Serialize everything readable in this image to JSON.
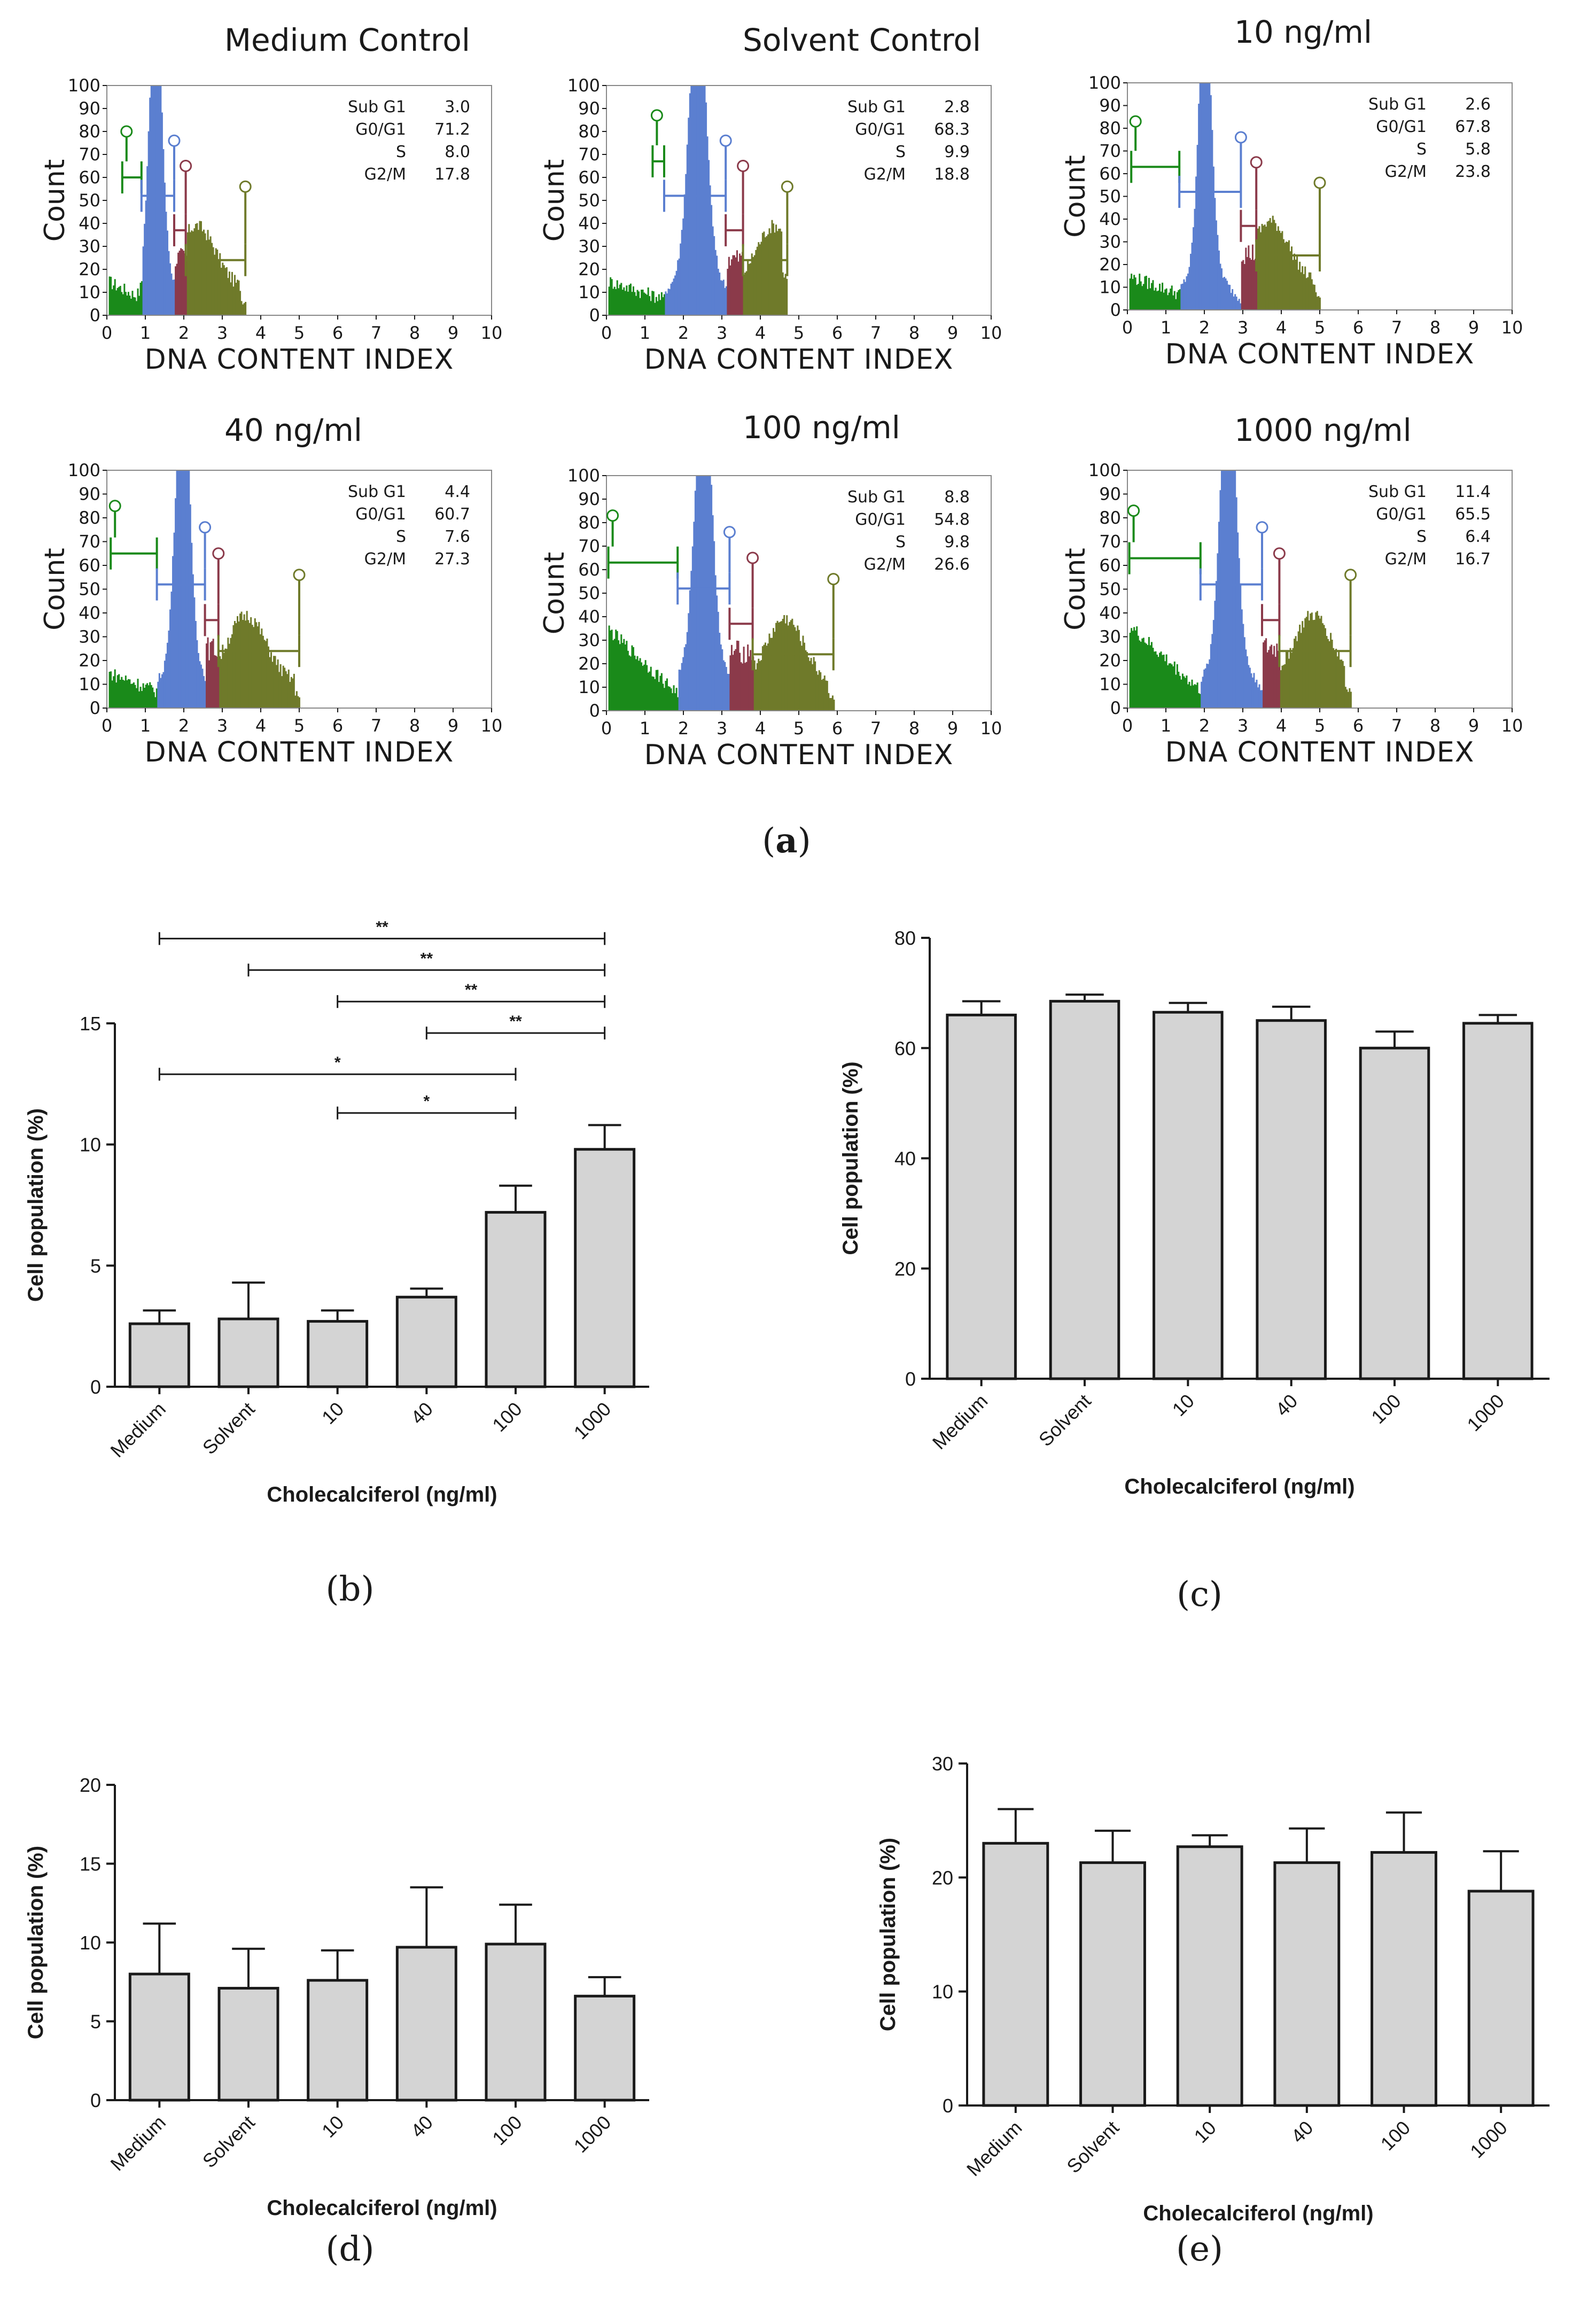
{
  "figure": {
    "captions": {
      "a": "a",
      "b": "b",
      "c": "c",
      "d": "d",
      "e": "e"
    }
  },
  "colors": {
    "sub_g1": "#1a8a1a",
    "g0_g1": "#5b7fd0",
    "s": "#8b3a4a",
    "g2_m": "#6f7a2a",
    "bar_fill": "#d4d4d4",
    "axis": "#1a1a1a"
  },
  "chart_data": [
    {
      "id": "a1",
      "type": "area",
      "title": "Medium Control",
      "xlabel": "DNA CONTENT INDEX",
      "ylabel": "Count",
      "xlim": [
        0,
        10
      ],
      "ylim": [
        0,
        100
      ],
      "xticks": [
        "0",
        "1",
        "2",
        "3",
        "4",
        "5",
        "6",
        "7",
        "8",
        "9",
        "10"
      ],
      "yticks": [
        "0",
        "10",
        "20",
        "30",
        "40",
        "50",
        "60",
        "70",
        "80",
        "90",
        "100"
      ],
      "stats": [
        {
          "label": "Sub G1",
          "value": "3.0"
        },
        {
          "label": "G0/G1",
          "value": "71.2"
        },
        {
          "label": "S",
          "value": "8.0"
        },
        {
          "label": "G2/M",
          "value": "17.8"
        }
      ],
      "peak": 1.25,
      "peak_width": 0.22,
      "gates": [
        [
          0.4,
          0.9
        ],
        [
          0.9,
          1.75
        ],
        [
          1.75,
          2.05
        ],
        [
          2.05,
          3.6
        ]
      ],
      "gate_y": [
        80,
        76,
        65,
        56
      ]
    },
    {
      "id": "a2",
      "type": "area",
      "title": "Solvent Control",
      "xlabel": "DNA CONTENT INDEX",
      "ylabel": "Count",
      "xlim": [
        0,
        10
      ],
      "ylim": [
        0,
        100
      ],
      "xticks": [
        "0",
        "1",
        "2",
        "3",
        "4",
        "5",
        "6",
        "7",
        "8",
        "9",
        "10"
      ],
      "yticks": [
        "0",
        "10",
        "20",
        "30",
        "40",
        "50",
        "60",
        "70",
        "80",
        "90",
        "100"
      ],
      "stats": [
        {
          "label": "Sub G1",
          "value": "2.8"
        },
        {
          "label": "G0/G1",
          "value": "68.3"
        },
        {
          "label": "S",
          "value": "9.9"
        },
        {
          "label": "G2/M",
          "value": "18.8"
        }
      ],
      "peak": 2.35,
      "peak_width": 0.3,
      "gates": [
        [
          1.2,
          1.5
        ],
        [
          1.5,
          3.1
        ],
        [
          3.1,
          3.55
        ],
        [
          3.55,
          4.7
        ]
      ],
      "gate_y": [
        87,
        76,
        65,
        56
      ]
    },
    {
      "id": "a3",
      "type": "area",
      "title": "10 ng/ml",
      "xlabel": "DNA CONTENT INDEX",
      "ylabel": "Count",
      "xlim": [
        0,
        10
      ],
      "ylim": [
        0,
        100
      ],
      "xticks": [
        "0",
        "1",
        "2",
        "3",
        "4",
        "5",
        "6",
        "7",
        "8",
        "9",
        "10"
      ],
      "yticks": [
        "0",
        "10",
        "20",
        "30",
        "40",
        "50",
        "60",
        "70",
        "80",
        "90",
        "100"
      ],
      "stats": [
        {
          "label": "Sub G1",
          "value": "2.6"
        },
        {
          "label": "G0/G1",
          "value": "67.8"
        },
        {
          "label": "S",
          "value": "5.8"
        },
        {
          "label": "G2/M",
          "value": "23.8"
        }
      ],
      "peak": 2.0,
      "peak_width": 0.22,
      "gates": [
        [
          0.1,
          1.35
        ],
        [
          1.35,
          2.95
        ],
        [
          2.95,
          3.35
        ],
        [
          3.35,
          5.0
        ]
      ],
      "gate_y": [
        83,
        76,
        65,
        56
      ]
    },
    {
      "id": "a4",
      "type": "area",
      "title": "40 ng/ml",
      "xlabel": "DNA CONTENT INDEX",
      "ylabel": "Count",
      "xlim": [
        0,
        10
      ],
      "ylim": [
        0,
        100
      ],
      "xticks": [
        "0",
        "1",
        "2",
        "3",
        "4",
        "5",
        "6",
        "7",
        "8",
        "9",
        "10"
      ],
      "yticks": [
        "0",
        "10",
        "20",
        "30",
        "40",
        "50",
        "60",
        "70",
        "80",
        "90",
        "100"
      ],
      "stats": [
        {
          "label": "Sub G1",
          "value": "4.4"
        },
        {
          "label": "G0/G1",
          "value": "60.7"
        },
        {
          "label": "S",
          "value": "7.6"
        },
        {
          "label": "G2/M",
          "value": "27.3"
        }
      ],
      "peak": 1.95,
      "peak_width": 0.25,
      "gates": [
        [
          0.1,
          1.3
        ],
        [
          1.3,
          2.55
        ],
        [
          2.55,
          2.9
        ],
        [
          2.9,
          5.0
        ]
      ],
      "gate_y": [
        85,
        76,
        65,
        56
      ]
    },
    {
      "id": "a5",
      "type": "area",
      "title": "100 ng/ml",
      "xlabel": "DNA CONTENT INDEX",
      "ylabel": "Count",
      "xlim": [
        0,
        10
      ],
      "ylim": [
        0,
        100
      ],
      "xticks": [
        "0",
        "1",
        "2",
        "3",
        "4",
        "5",
        "6",
        "7",
        "8",
        "9",
        "10"
      ],
      "yticks": [
        "0",
        "10",
        "20",
        "30",
        "40",
        "50",
        "60",
        "70",
        "80",
        "90",
        "100"
      ],
      "stats": [
        {
          "label": "Sub G1",
          "value": "8.8"
        },
        {
          "label": "G0/G1",
          "value": "54.8"
        },
        {
          "label": "S",
          "value": "9.8"
        },
        {
          "label": "G2/M",
          "value": "26.6"
        }
      ],
      "peak": 2.5,
      "peak_width": 0.3,
      "gates": [
        [
          0.05,
          1.85
        ],
        [
          1.85,
          3.2
        ],
        [
          3.2,
          3.8
        ],
        [
          3.8,
          5.9
        ]
      ],
      "gate_y": [
        83,
        76,
        65,
        56
      ]
    },
    {
      "id": "a6",
      "type": "area",
      "title": "1000 ng/ml",
      "xlabel": "DNA CONTENT INDEX",
      "ylabel": "Count",
      "xlim": [
        0,
        10
      ],
      "ylim": [
        0,
        100
      ],
      "xticks": [
        "0",
        "1",
        "2",
        "3",
        "4",
        "5",
        "6",
        "7",
        "8",
        "9",
        "10"
      ],
      "yticks": [
        "0",
        "10",
        "20",
        "30",
        "40",
        "50",
        "60",
        "70",
        "80",
        "90",
        "100"
      ],
      "stats": [
        {
          "label": "Sub G1",
          "value": "11.4"
        },
        {
          "label": "G0/G1",
          "value": "65.5"
        },
        {
          "label": "S",
          "value": "6.4"
        },
        {
          "label": "G2/M",
          "value": "16.7"
        }
      ],
      "peak": 2.6,
      "peak_width": 0.28,
      "gates": [
        [
          0.05,
          1.9
        ],
        [
          1.9,
          3.5
        ],
        [
          3.5,
          3.95
        ],
        [
          3.95,
          5.8
        ]
      ],
      "gate_y": [
        83,
        76,
        65,
        56
      ]
    },
    {
      "id": "b",
      "type": "bar",
      "xlabel": "Cholecalciferol (ng/ml)",
      "ylabel": "Cell population (%)",
      "categories": [
        "Medium",
        "Solvent",
        "10",
        "40",
        "100",
        "1000"
      ],
      "values": [
        2.6,
        2.8,
        2.7,
        3.7,
        7.2,
        9.8
      ],
      "errors": [
        0.55,
        1.5,
        0.45,
        0.35,
        1.1,
        1.0
      ],
      "ylim": [
        0,
        15
      ],
      "yticks": [
        "0",
        "5",
        "10",
        "15"
      ],
      "significance": [
        {
          "from": 0,
          "to": 5,
          "y": 18.5,
          "label": "**"
        },
        {
          "from": 1,
          "to": 5,
          "y": 17.2,
          "label": "**"
        },
        {
          "from": 2,
          "to": 5,
          "y": 15.9,
          "label": "**"
        },
        {
          "from": 3,
          "to": 5,
          "y": 14.6,
          "label": "**"
        },
        {
          "from": 0,
          "to": 4,
          "y": 12.9,
          "label": "*"
        },
        {
          "from": 2,
          "to": 4,
          "y": 11.3,
          "label": "*"
        }
      ]
    },
    {
      "id": "c",
      "type": "bar",
      "xlabel": "Cholecalciferol (ng/ml)",
      "ylabel": "Cell population (%)",
      "categories": [
        "Medium",
        "Solvent",
        "10",
        "40",
        "100",
        "1000"
      ],
      "values": [
        66,
        68.5,
        66.5,
        65,
        60,
        64.5
      ],
      "errors": [
        2.5,
        1.2,
        1.7,
        2.5,
        3.0,
        1.5
      ],
      "ylim": [
        0,
        80
      ],
      "yticks": [
        "0",
        "20",
        "40",
        "60",
        "80"
      ]
    },
    {
      "id": "d",
      "type": "bar",
      "xlabel": "Cholecalciferol (ng/ml)",
      "ylabel": "Cell population (%)",
      "categories": [
        "Medium",
        "Solvent",
        "10",
        "40",
        "100",
        "1000"
      ],
      "values": [
        8.0,
        7.1,
        7.6,
        9.7,
        9.9,
        6.6
      ],
      "errors": [
        3.2,
        2.5,
        1.9,
        3.8,
        2.5,
        1.2
      ],
      "ylim": [
        0,
        20
      ],
      "yticks": [
        "0",
        "5",
        "10",
        "15",
        "20"
      ]
    },
    {
      "id": "e",
      "type": "bar",
      "xlabel": "Cholecalciferol (ng/ml)",
      "ylabel": "Cell population (%)",
      "categories": [
        "Medium",
        "Solvent",
        "10",
        "40",
        "100",
        "1000"
      ],
      "values": [
        23.0,
        21.3,
        22.7,
        21.3,
        22.2,
        18.8
      ],
      "errors": [
        3.0,
        2.8,
        1.0,
        3.0,
        3.5,
        3.5
      ],
      "ylim": [
        0,
        30
      ],
      "yticks": [
        "0",
        "10",
        "20",
        "30"
      ]
    }
  ]
}
